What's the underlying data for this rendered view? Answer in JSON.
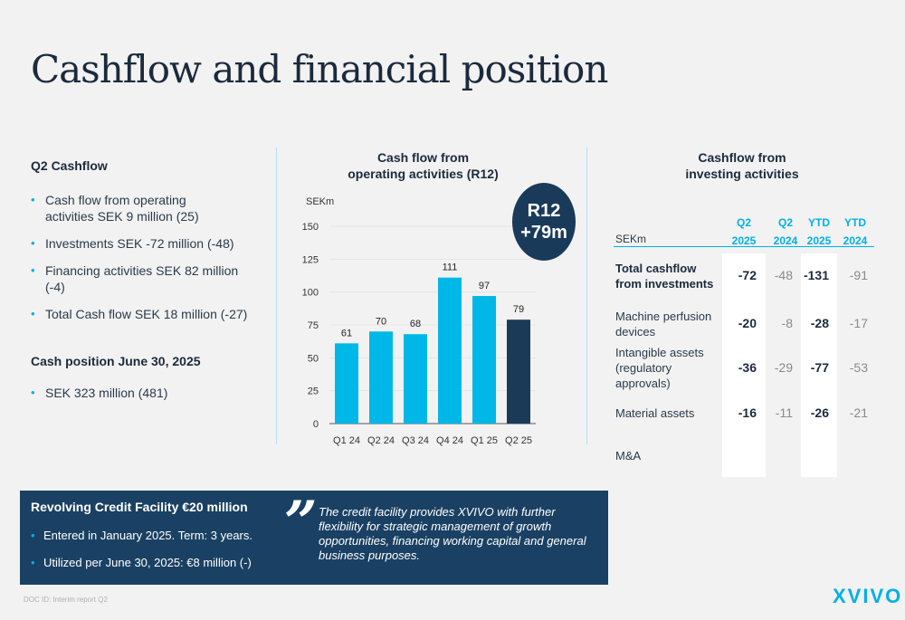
{
  "title": "Cashflow and financial position",
  "left": {
    "q2_title": "Q2 Cashflow",
    "q2_bullets": [
      "Cash flow from operating activities SEK 9 million (25)",
      "Investments SEK -72 million (-48)",
      "Financing activities SEK 82 million (-4)",
      "Total Cash flow SEK 18 million (-27)"
    ],
    "cash_title": "Cash position June 30, 2025",
    "cash_bullets": [
      "SEK 323 million (481)"
    ]
  },
  "middle": {
    "heading_line1": "Cash flow from",
    "heading_line2": "operating activities (R12)",
    "bubble_line1": "R12",
    "bubble_line2": "+79m"
  },
  "chart_data": {
    "type": "bar",
    "ylabel": "SEKm",
    "categories": [
      "Q1 24",
      "Q2 24",
      "Q3 24",
      "Q4 24",
      "Q1 25",
      "Q2 25"
    ],
    "values": [
      61,
      70,
      68,
      111,
      97,
      79
    ],
    "ylim": [
      0,
      150
    ],
    "yticks": [
      0,
      25,
      50,
      75,
      100,
      125,
      150
    ],
    "grid": true,
    "colors": [
      "#00b8e8",
      "#00b8e8",
      "#00b8e8",
      "#00b8e8",
      "#00b8e8",
      "#1b3a57"
    ]
  },
  "right": {
    "heading_line1": "Cashflow from",
    "heading_line2": "investing activities",
    "unit": "SEKm",
    "columns": [
      {
        "q": "Q2",
        "y": "2025"
      },
      {
        "q": "Q2",
        "y": "2024"
      },
      {
        "q": "YTD",
        "y": "2025"
      },
      {
        "q": "YTD",
        "y": "2024"
      }
    ],
    "rows": [
      {
        "label": "Total cashflow from investments",
        "values": [
          "-72",
          "-48",
          "-131",
          "-91"
        ]
      },
      {
        "label": "Machine perfusion devices",
        "values": [
          "-20",
          "-8",
          "-28",
          "-17"
        ]
      },
      {
        "label": "Intangible assets (regulatory approvals)",
        "values": [
          "-36",
          "-29",
          "-77",
          "-53"
        ]
      },
      {
        "label": "Material assets",
        "values": [
          "-16",
          "-11",
          "-26",
          "-21"
        ]
      },
      {
        "label": "M&A",
        "values": [
          "",
          "",
          "",
          ""
        ]
      }
    ]
  },
  "credit": {
    "title": "Revolving Credit Facility €20 million",
    "bullets": [
      "Entered in January 2025. Term: 3 years.",
      "Utilized per June 30, 2025: €8 million (-)"
    ],
    "quote_mark": "”",
    "quote": "The credit facility provides XVIVO with further flexibility for strategic management of growth opportunities, financing working capital and general business purposes."
  },
  "footer": "DOC ID:   Interim report Q2",
  "logo": "XVIVO",
  "colors": {
    "accent": "#00b0e6",
    "navy": "#1a4163",
    "dark_bar": "#1b3a57"
  }
}
